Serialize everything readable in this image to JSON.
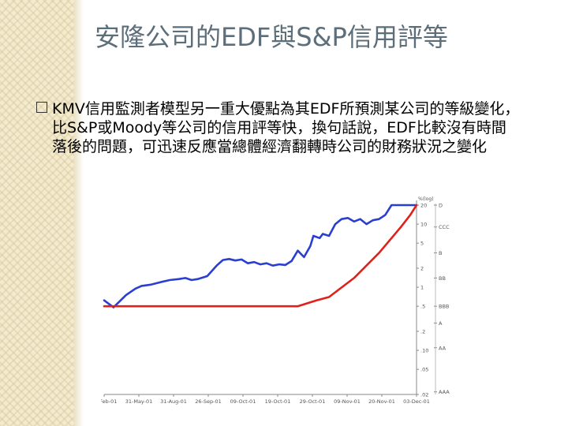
{
  "slide": {
    "title": "安隆公司的EDF與S&P信用評等",
    "bullet": "KMV信用監測者模型另一重大優點為其EDF所預測某公司的等級變化，比S&P或Moody等公司的信用評等快，換句話說，EDF比較沒有時間落後的問題，可迅速反應當總體經濟翻轉時公司的財務狀況之變化"
  },
  "chart_data": {
    "type": "line",
    "title": "",
    "xlabel": "",
    "ylabel": "",
    "y_unit_label": "%(log)",
    "y_scale": "log",
    "ylim": [
      0.02,
      20
    ],
    "grid": false,
    "x_tick_labels": [
      "28-Feb-01",
      "31-May-01",
      "31-Aug-01",
      "26-Sep-01",
      "09-Oct-01",
      "19-Oct-01",
      "29-Oct-01",
      "09-Nov-01",
      "20-Nov-01",
      "03-Dec-01"
    ],
    "y_tick_labels": [
      "20",
      "10",
      "5",
      "2",
      "1",
      ".5",
      ".2",
      ".10",
      ".05",
      ".02"
    ],
    "rating_labels": [
      {
        "label": "D",
        "at": 20
      },
      {
        "label": "CCC",
        "at": 9
      },
      {
        "label": "B",
        "at": 3.5
      },
      {
        "label": "BB",
        "at": 1.4
      },
      {
        "label": "BBB",
        "at": 0.5
      },
      {
        "label": "A",
        "at": 0.27
      },
      {
        "label": "AA",
        "at": 0.11
      },
      {
        "label": "AAA",
        "at": 0.022
      }
    ],
    "series": [
      {
        "color": "#2a3fd0",
        "x": [
          0,
          0.03,
          0.07,
          0.1,
          0.12,
          0.15,
          0.18,
          0.21,
          0.24,
          0.26,
          0.28,
          0.3,
          0.33,
          0.36,
          0.38,
          0.4,
          0.42,
          0.44,
          0.46,
          0.48,
          0.5,
          0.52,
          0.54,
          0.56,
          0.58,
          0.6,
          0.62,
          0.64,
          0.66,
          0.67,
          0.69,
          0.7,
          0.72,
          0.74,
          0.76,
          0.78,
          0.8,
          0.82,
          0.84,
          0.86,
          0.88,
          0.9,
          0.92,
          0.95,
          0.98,
          1.0
        ],
        "y": [
          0.62,
          0.48,
          0.75,
          0.95,
          1.05,
          1.1,
          1.2,
          1.3,
          1.35,
          1.4,
          1.3,
          1.35,
          1.5,
          2.2,
          2.7,
          2.8,
          2.65,
          2.75,
          2.4,
          2.5,
          2.3,
          2.4,
          2.2,
          2.3,
          2.25,
          2.6,
          3.8,
          3.0,
          4.5,
          6.5,
          6.0,
          7.0,
          6.5,
          10.0,
          12.0,
          12.5,
          11.0,
          12.0,
          10.0,
          11.5,
          12.0,
          14.0,
          20.0,
          20.0,
          20.0,
          20.0
        ]
      },
      {
        "color": "#e0201a",
        "x": [
          0,
          0.2,
          0.4,
          0.6,
          0.62,
          0.68,
          0.72,
          0.8,
          0.88,
          0.95,
          0.98,
          1.0
        ],
        "y": [
          0.5,
          0.5,
          0.5,
          0.5,
          0.5,
          0.62,
          0.7,
          1.4,
          3.5,
          9.0,
          14.0,
          20.0
        ]
      }
    ]
  }
}
